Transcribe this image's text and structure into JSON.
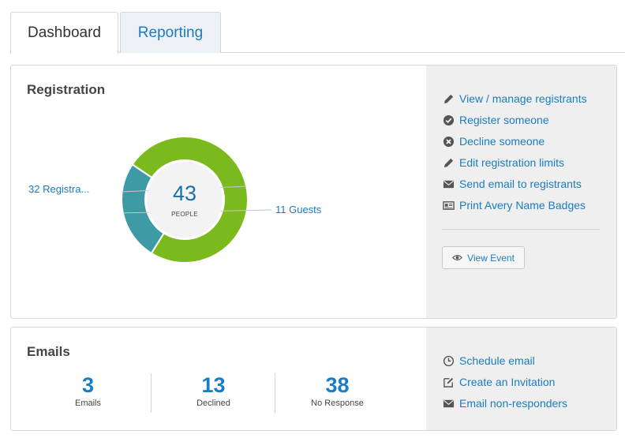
{
  "tabs": [
    {
      "label": "Dashboard",
      "active": true
    },
    {
      "label": "Reporting",
      "active": false
    }
  ],
  "registration": {
    "title": "Registration",
    "total": "43",
    "total_label": "PEOPLE",
    "actions": [
      {
        "label": "View / manage registrants",
        "icon": "pencil-icon"
      },
      {
        "label": "Register someone",
        "icon": "check-circle-icon"
      },
      {
        "label": "Decline someone",
        "icon": "x-circle-icon"
      },
      {
        "label": "Edit registration limits",
        "icon": "pencil-icon"
      },
      {
        "label": "Send email to registrants",
        "icon": "envelope-icon"
      },
      {
        "label": "Print Avery Name Badges",
        "icon": "id-card-icon"
      }
    ],
    "view_event_label": "View Event"
  },
  "chart_data": {
    "type": "pie",
    "donut": true,
    "center_value": "43",
    "center_label": "PEOPLE",
    "slices": [
      {
        "label": "32 Registra...",
        "value": 32,
        "color": "#7aba1c"
      },
      {
        "label": "11 Guests",
        "value": 11,
        "color": "#3e9aa5"
      }
    ]
  },
  "emails": {
    "title": "Emails",
    "stats": [
      {
        "value": "3",
        "label": "Emails"
      },
      {
        "value": "13",
        "label": "Declined"
      },
      {
        "value": "38",
        "label": "No Response"
      }
    ],
    "actions": [
      {
        "label": "Schedule email",
        "icon": "clock-icon"
      },
      {
        "label": "Create an Invitation",
        "icon": "edit-square-icon"
      },
      {
        "label": "Email non-responders",
        "icon": "envelope-icon"
      }
    ]
  }
}
